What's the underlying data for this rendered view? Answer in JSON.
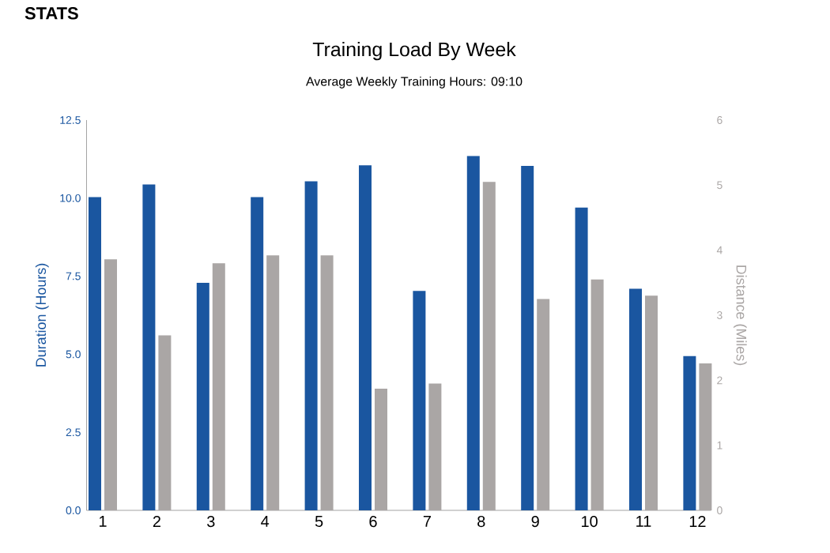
{
  "chart_data": {
    "type": "bar",
    "title": "Training Load By Week",
    "subtitle": "Average Weekly Training Hours: 09:10",
    "annotations": [
      "STATS"
    ],
    "ylabel": "Duration (Hours)",
    "y2label": "Distance (Miles)",
    "categories": [
      "1",
      "2",
      "3",
      "4",
      "5",
      "6",
      "7",
      "8",
      "9",
      "10",
      "11",
      "12"
    ],
    "series": [
      {
        "color": "#1a56a0",
        "values": [
          10.03,
          10.44,
          7.29,
          10.03,
          10.54,
          11.05,
          7.03,
          11.35,
          11.03,
          9.7,
          7.1,
          4.94
        ]
      },
      {
        "color": "#aaa6a5",
        "axis": "y2",
        "values": [
          3.86,
          2.69,
          3.8,
          3.92,
          3.92,
          1.87,
          1.95,
          5.05,
          3.25,
          3.55,
          3.3,
          2.26
        ]
      }
    ],
    "ylim": [
      0,
      12.5
    ],
    "yticks": [
      {
        "value": 0,
        "label": "0.0"
      },
      2.5,
      {
        "value": 5,
        "label": "5.0"
      },
      7.5,
      {
        "value": 10,
        "label": "10.0"
      },
      12.5
    ],
    "y2lim": [
      0,
      6
    ],
    "y2ticks": [
      0,
      1,
      2,
      3,
      4,
      5,
      6
    ]
  }
}
